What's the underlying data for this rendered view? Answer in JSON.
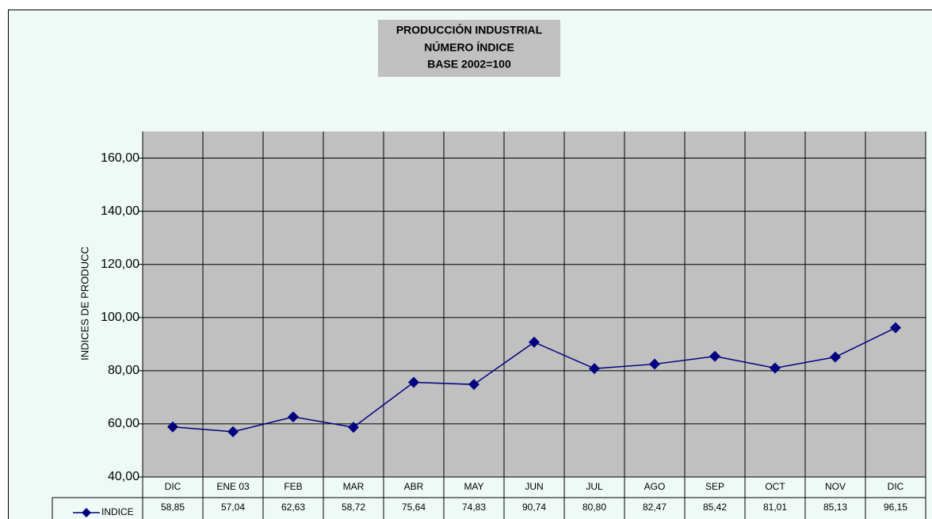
{
  "chart_data": {
    "type": "line",
    "title": [
      "PRODUCCIÓN INDUSTRIAL",
      "NÚMERO ÍNDICE",
      "BASE 2002=100"
    ],
    "y_label": "INDICES DE PRODUCC",
    "categories": [
      "DIC",
      "ENE 03",
      "FEB",
      "MAR",
      "ABR",
      "MAY",
      "JUN",
      "JUL",
      "AGO",
      "SEP",
      "OCT",
      "NOV",
      "DIC"
    ],
    "series": [
      {
        "name": "INDICE",
        "color": "#000080",
        "values": [
          58.85,
          57.04,
          62.63,
          58.72,
          75.64,
          74.83,
          90.74,
          80.8,
          82.47,
          85.42,
          81.01,
          85.13,
          96.15
        ],
        "value_labels": [
          "58,85",
          "57,04",
          "62,63",
          "58,72",
          "75,64",
          "74,83",
          "90,74",
          "80,80",
          "82,47",
          "85,42",
          "81,01",
          "85,13",
          "96,15"
        ]
      }
    ],
    "ylim": [
      40,
      170
    ],
    "yticks": [
      {
        "value": 40,
        "label": "40,00"
      },
      {
        "value": 60,
        "label": "60,00"
      },
      {
        "value": 80,
        "label": "80,00"
      },
      {
        "value": 100,
        "label": "100,00"
      },
      {
        "value": 120,
        "label": "120,00"
      },
      {
        "value": 140,
        "label": "140,00"
      },
      {
        "value": 160,
        "label": "160,00"
      }
    ],
    "grid": true
  }
}
